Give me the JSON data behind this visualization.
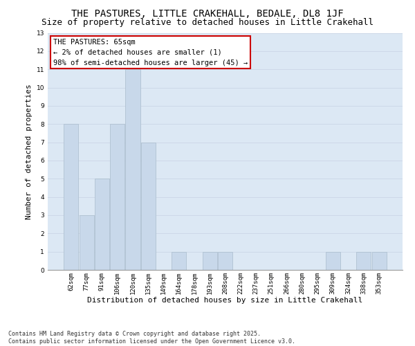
{
  "title": "THE PASTURES, LITTLE CRAKEHALL, BEDALE, DL8 1JF",
  "subtitle": "Size of property relative to detached houses in Little Crakehall",
  "xlabel": "Distribution of detached houses by size in Little Crakehall",
  "ylabel": "Number of detached properties",
  "categories": [
    "62sqm",
    "77sqm",
    "91sqm",
    "106sqm",
    "120sqm",
    "135sqm",
    "149sqm",
    "164sqm",
    "178sqm",
    "193sqm",
    "208sqm",
    "222sqm",
    "237sqm",
    "251sqm",
    "266sqm",
    "280sqm",
    "295sqm",
    "309sqm",
    "324sqm",
    "338sqm",
    "353sqm"
  ],
  "values": [
    8,
    3,
    5,
    8,
    11,
    7,
    0,
    1,
    0,
    1,
    1,
    0,
    0,
    0,
    0,
    0,
    0,
    1,
    0,
    1,
    1
  ],
  "bar_color": "#c8d8ea",
  "bar_edge_color": "#aabccc",
  "ylim": [
    0,
    13
  ],
  "yticks": [
    0,
    1,
    2,
    3,
    4,
    5,
    6,
    7,
    8,
    9,
    10,
    11,
    12,
    13
  ],
  "annotation_line1": "THE PASTURES: 65sqm",
  "annotation_line2": "← 2% of detached houses are smaller (1)",
  "annotation_line3": "98% of semi-detached houses are larger (45) →",
  "annotation_box_facecolor": "#ffffff",
  "annotation_box_edgecolor": "#cc0000",
  "footer_line1": "Contains HM Land Registry data © Crown copyright and database right 2025.",
  "footer_line2": "Contains public sector information licensed under the Open Government Licence v3.0.",
  "grid_color": "#cdd8e8",
  "background_color": "#dce8f4",
  "title_fontsize": 10,
  "subtitle_fontsize": 9,
  "tick_fontsize": 6.5,
  "ylabel_fontsize": 8,
  "xlabel_fontsize": 8,
  "annotation_fontsize": 7.5,
  "footer_fontsize": 6
}
